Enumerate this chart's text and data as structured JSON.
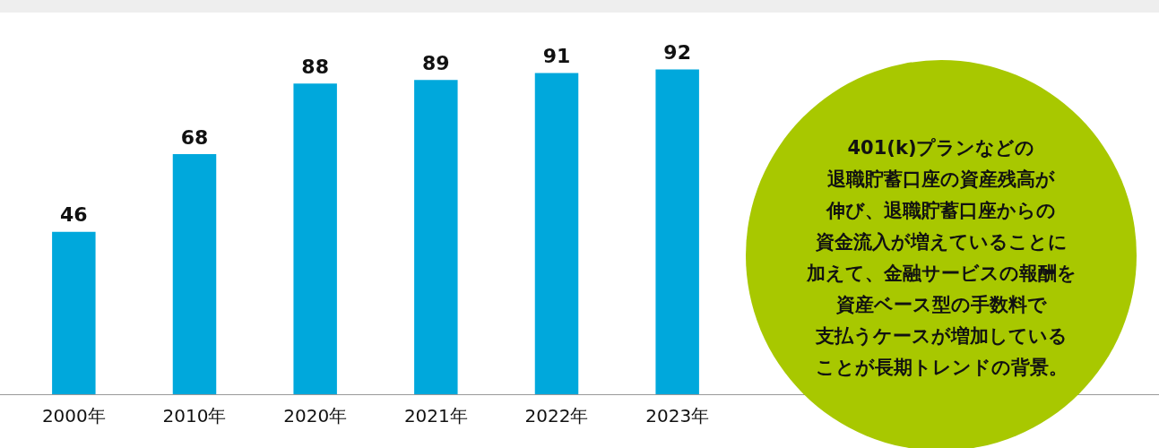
{
  "chart_data": {
    "type": "bar",
    "categories": [
      "2000年",
      "2010年",
      "2020年",
      "2021年",
      "2022年",
      "2023年"
    ],
    "values": [
      46,
      68,
      88,
      89,
      91,
      92
    ],
    "color": "#00a8dc",
    "data_labels": true,
    "grid": false,
    "legend": false,
    "tick_labels": "x",
    "annotations": [
      "401(k)プランなどの",
      "退職貯蓄口座の資産残高が",
      "伸び、退職貯蓄口座からの",
      "資金流入が増えていることに",
      "加えて、金融サービスの報酬を",
      "資産ベース型の手数料で",
      "支払うケースが増加している",
      "ことが長期トレンドの背景。"
    ]
  }
}
